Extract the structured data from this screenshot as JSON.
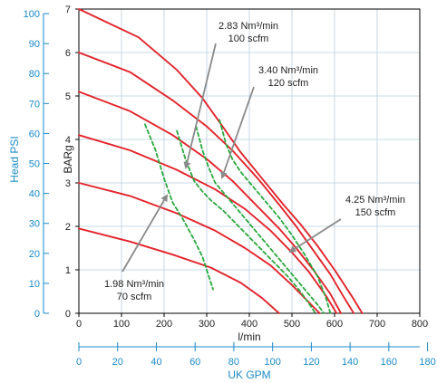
{
  "chart_data": {
    "type": "line",
    "ylabel_left": "Head PSI",
    "ylabel_inner": "BARg",
    "xlabel": "l/min",
    "xlabel_bottom": "UK GPM",
    "x_lpm_ticks": [
      "0",
      "100",
      "200",
      "300",
      "400",
      "500",
      "600",
      "700",
      "800"
    ],
    "x_gpm_ticks": [
      "0",
      "20",
      "40",
      "60",
      "80",
      "100",
      "120",
      "140",
      "160",
      "180"
    ],
    "y_bar_ticks": [
      "0",
      "1",
      "2",
      "3",
      "4",
      "5",
      "6",
      "7"
    ],
    "y_psi_ticks": [
      "0",
      "10",
      "20",
      "30",
      "40",
      "50",
      "60",
      "70",
      "80",
      "90",
      "100"
    ],
    "xlim": [
      0,
      800
    ],
    "ylim": [
      0,
      7
    ],
    "grid": true,
    "colors": {
      "performance_curve": "#e2242b",
      "air_consumption": "#2aa83e",
      "axis_blue": "#1a8ac8"
    },
    "series": [
      {
        "kind": "pressure",
        "x": [
          0,
          140,
          230,
          290,
          330,
          380,
          430,
          480,
          520,
          560,
          600,
          640,
          665
        ],
        "y": [
          7.0,
          6.35,
          5.6,
          4.95,
          4.4,
          3.7,
          3.1,
          2.5,
          2.05,
          1.55,
          1.0,
          0.4,
          0.0
        ]
      },
      {
        "kind": "pressure",
        "x": [
          0,
          120,
          220,
          300,
          360,
          420,
          470,
          510,
          550,
          590,
          620,
          645
        ],
        "y": [
          6.0,
          5.55,
          4.9,
          4.3,
          3.75,
          3.1,
          2.5,
          2.0,
          1.45,
          0.9,
          0.4,
          0.0
        ]
      },
      {
        "kind": "pressure",
        "x": [
          0,
          120,
          220,
          300,
          360,
          420,
          470,
          510,
          550,
          590,
          615
        ],
        "y": [
          5.1,
          4.65,
          4.1,
          3.55,
          3.05,
          2.45,
          1.95,
          1.5,
          1.0,
          0.45,
          0.0
        ]
      },
      {
        "kind": "pressure",
        "x": [
          0,
          120,
          230,
          320,
          390,
          450,
          500,
          540,
          580,
          605
        ],
        "y": [
          4.1,
          3.75,
          3.3,
          2.85,
          2.4,
          1.9,
          1.4,
          0.95,
          0.4,
          0.0
        ]
      },
      {
        "kind": "pressure",
        "x": [
          0,
          120,
          230,
          320,
          390,
          450,
          500,
          540,
          565
        ],
        "y": [
          3.0,
          2.7,
          2.3,
          1.9,
          1.5,
          1.1,
          0.65,
          0.25,
          0.0
        ]
      },
      {
        "kind": "pressure",
        "x": [
          0,
          120,
          220,
          310,
          380,
          430,
          470
        ],
        "y": [
          1.95,
          1.65,
          1.35,
          1.05,
          0.7,
          0.35,
          0.0
        ]
      },
      {
        "kind": "air",
        "x": [
          155,
          180,
          200,
          220,
          245,
          270,
          290,
          305,
          315
        ],
        "y": [
          4.35,
          3.75,
          3.1,
          2.55,
          2.15,
          1.7,
          1.3,
          0.85,
          0.55
        ]
      },
      {
        "kind": "air",
        "x": [
          230,
          250,
          270,
          290,
          310,
          340,
          370,
          400,
          430,
          460,
          490,
          520,
          545,
          555
        ],
        "y": [
          4.2,
          3.55,
          3.05,
          2.8,
          2.6,
          2.35,
          2.05,
          1.75,
          1.45,
          1.15,
          0.85,
          0.5,
          0.15,
          0.0
        ]
      },
      {
        "kind": "air",
        "x": [
          275,
          290,
          305,
          320,
          350,
          380,
          410,
          440,
          470,
          500,
          530,
          560,
          575
        ],
        "y": [
          4.3,
          3.75,
          3.35,
          3.0,
          2.65,
          2.3,
          1.95,
          1.6,
          1.25,
          0.9,
          0.55,
          0.2,
          0.0
        ]
      },
      {
        "kind": "air",
        "x": [
          330,
          345,
          360,
          380,
          410,
          440,
          470,
          500,
          530,
          560,
          580,
          590
        ],
        "y": [
          4.45,
          3.9,
          3.55,
          3.25,
          2.9,
          2.55,
          2.2,
          1.8,
          1.35,
          0.85,
          0.35,
          0.0
        ]
      }
    ],
    "annotations": [
      {
        "id": "a283",
        "line1": "2.83 Nm³/min",
        "line2": "100 scfm"
      },
      {
        "id": "a340",
        "line1": "3.40 Nm³/min",
        "line2": "120 scfm"
      },
      {
        "id": "a425",
        "line1": "4.25 Nm³/min",
        "line2": "150 scfm"
      },
      {
        "id": "a198",
        "line1": "1.98 Nm³/min",
        "line2": "70 scfm"
      }
    ]
  }
}
